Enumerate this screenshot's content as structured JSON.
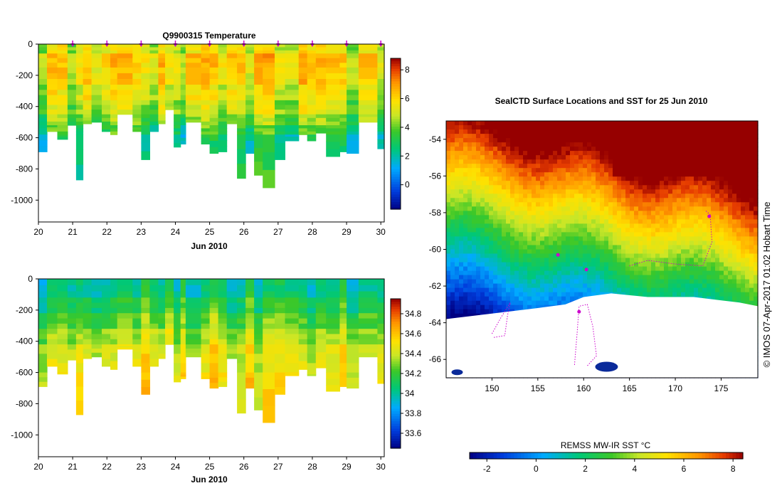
{
  "chart_data": [
    {
      "type": "heatmap",
      "title": "Q9900315  Temperature",
      "xlabel": "Jun 2010",
      "x_ticks": [
        "20",
        "21",
        "22",
        "23",
        "24",
        "25",
        "26",
        "27",
        "28",
        "29",
        "30"
      ],
      "x_range": [
        20,
        30.1
      ],
      "y_ticks": [
        "0",
        "-200",
        "-400",
        "-600",
        "-800",
        "-1000"
      ],
      "y_range": [
        -1140,
        0
      ],
      "colorbar": {
        "ticks": [
          "0",
          "2",
          "4",
          "6",
          "8"
        ],
        "range": [
          -1.7,
          8.8
        ]
      },
      "profile_markers": [
        21,
        22,
        23,
        24,
        25,
        26,
        27,
        28,
        29,
        30
      ],
      "profiles": [
        {
          "start": 20.0,
          "end": 20.25,
          "depth": 690
        },
        {
          "start": 20.25,
          "end": 20.55,
          "depth": 560
        },
        {
          "start": 20.55,
          "end": 20.85,
          "depth": 610
        },
        {
          "start": 20.85,
          "end": 21.1,
          "depth": 520
        },
        {
          "start": 21.1,
          "end": 21.3,
          "depth": 870
        },
        {
          "start": 21.3,
          "end": 21.55,
          "depth": 510
        },
        {
          "start": 21.55,
          "end": 21.85,
          "depth": 500
        },
        {
          "start": 21.85,
          "end": 22.1,
          "depth": 560
        },
        {
          "start": 22.1,
          "end": 22.3,
          "depth": 580
        },
        {
          "start": 22.3,
          "end": 22.75,
          "depth": 450
        },
        {
          "start": 22.75,
          "end": 23.0,
          "depth": 560
        },
        {
          "start": 23.0,
          "end": 23.25,
          "depth": 740
        },
        {
          "start": 23.25,
          "end": 23.5,
          "depth": 560
        },
        {
          "start": 23.5,
          "end": 23.7,
          "depth": 510
        },
        {
          "start": 23.7,
          "end": 23.95,
          "depth": 420
        },
        {
          "start": 23.95,
          "end": 24.15,
          "depth": 660
        },
        {
          "start": 24.15,
          "end": 24.3,
          "depth": 640
        },
        {
          "start": 24.3,
          "end": 24.75,
          "depth": 500
        },
        {
          "start": 24.75,
          "end": 25.0,
          "depth": 640
        },
        {
          "start": 25.0,
          "end": 25.25,
          "depth": 700
        },
        {
          "start": 25.25,
          "end": 25.5,
          "depth": 690
        },
        {
          "start": 25.5,
          "end": 25.8,
          "depth": 510
        },
        {
          "start": 25.8,
          "end": 26.05,
          "depth": 860
        },
        {
          "start": 26.05,
          "end": 26.3,
          "depth": 700
        },
        {
          "start": 26.3,
          "end": 26.55,
          "depth": 840
        },
        {
          "start": 26.55,
          "end": 26.9,
          "depth": 920
        },
        {
          "start": 26.9,
          "end": 27.2,
          "depth": 740
        },
        {
          "start": 27.2,
          "end": 27.6,
          "depth": 620
        },
        {
          "start": 27.6,
          "end": 27.85,
          "depth": 580
        },
        {
          "start": 27.85,
          "end": 28.1,
          "depth": 620
        },
        {
          "start": 28.1,
          "end": 28.4,
          "depth": 570
        },
        {
          "start": 28.4,
          "end": 28.8,
          "depth": 720
        },
        {
          "start": 28.8,
          "end": 29.0,
          "depth": 690
        },
        {
          "start": 29.0,
          "end": 29.35,
          "depth": 700
        },
        {
          "start": 29.35,
          "end": 29.9,
          "depth": 500
        },
        {
          "start": 29.9,
          "end": 30.1,
          "depth": 670
        }
      ],
      "layers": [
        {
          "top": 0,
          "bottom": 60,
          "value": 5.2
        },
        {
          "top": 60,
          "bottom": 150,
          "value": 6.0
        },
        {
          "top": 150,
          "bottom": 260,
          "value": 5.8
        },
        {
          "top": 260,
          "bottom": 360,
          "value": 5.2
        },
        {
          "top": 360,
          "bottom": 450,
          "value": 4.7
        },
        {
          "top": 450,
          "bottom": 520,
          "value": 4.0
        },
        {
          "top": 520,
          "bottom": 580,
          "value": 3.3
        },
        {
          "top": 580,
          "bottom": 1000,
          "value": 2.6
        }
      ]
    },
    {
      "type": "heatmap",
      "title": "",
      "xlabel": "Jun 2010",
      "x_ticks": [
        "20",
        "21",
        "22",
        "23",
        "24",
        "25",
        "26",
        "27",
        "28",
        "29",
        "30"
      ],
      "x_range": [
        20,
        30.1
      ],
      "y_ticks": [
        "0",
        "-200",
        "-400",
        "-600",
        "-800",
        "-1000"
      ],
      "y_range": [
        -1140,
        0
      ],
      "colorbar": {
        "ticks": [
          "33.6",
          "33.8",
          "34",
          "34.2",
          "34.4",
          "34.6",
          "34.8"
        ],
        "range": [
          33.45,
          34.95
        ]
      },
      "layers": [
        {
          "top": 0,
          "bottom": 120,
          "value": 34.05
        },
        {
          "top": 120,
          "bottom": 220,
          "value": 34.15
        },
        {
          "top": 220,
          "bottom": 320,
          "value": 34.25
        },
        {
          "top": 320,
          "bottom": 420,
          "value": 34.35
        },
        {
          "top": 420,
          "bottom": 600,
          "value": 34.45
        },
        {
          "top": 600,
          "bottom": 1000,
          "value": 34.5
        }
      ]
    },
    {
      "type": "heatmap",
      "title": "SealCTD Surface Locations and SST for 25 Jun 2010",
      "x_ticks": [
        "150",
        "155",
        "160",
        "165",
        "170",
        "175"
      ],
      "x_range": [
        145,
        179
      ],
      "y_ticks": [
        "-54",
        "-56",
        "-58",
        "-60",
        "-62",
        "-64",
        "-66"
      ],
      "y_range": [
        -67,
        -53
      ],
      "colorbar": {
        "label": "REMSS MW-IR SST °C",
        "ticks": [
          "-2",
          "0",
          "2",
          "4",
          "6",
          "8"
        ],
        "range": [
          -2.7,
          8.4
        ]
      },
      "credit": "© IMOS 07-Apr-2017 01:02 Hobart Time"
    }
  ],
  "colors": {
    "marker": "#cc00cc",
    "land": "#ffffff",
    "background": "#ffffff"
  }
}
